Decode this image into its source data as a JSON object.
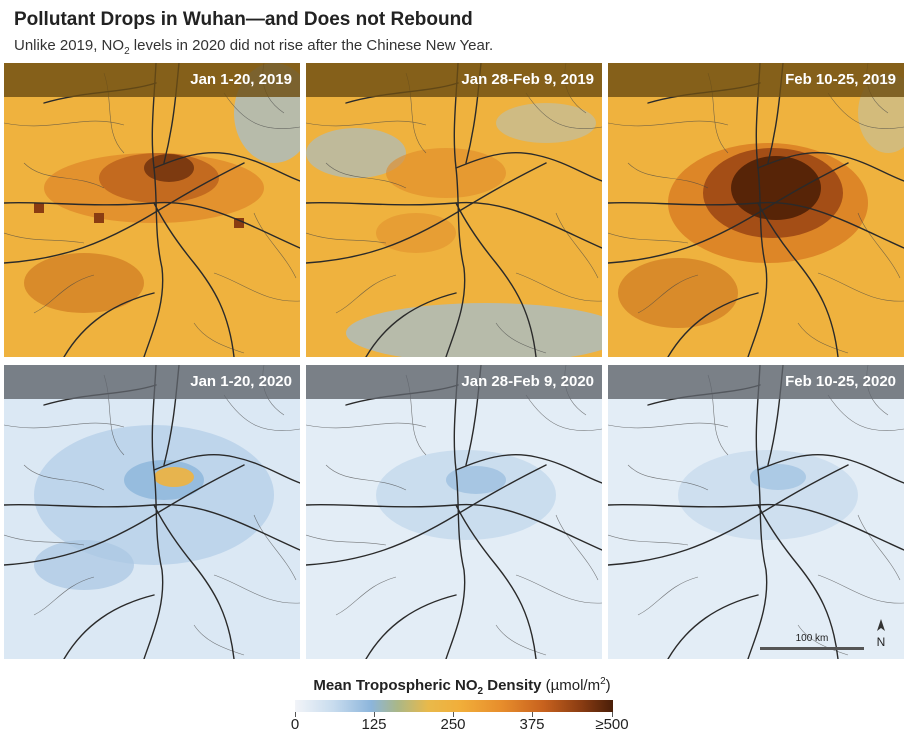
{
  "header": {
    "title": "Pollutant Drops in Wuhan—and Does not Rebound",
    "subtitle_pre": "Unlike 2019, NO",
    "subtitle_sub": "2",
    "subtitle_post": " levels in 2020 did not rise after the Chinese New Year."
  },
  "panels": [
    {
      "label": "Jan 1-20, 2019",
      "year": "2019",
      "intensity": "high"
    },
    {
      "label": "Jan 28-Feb 9, 2019",
      "year": "2019",
      "intensity": "medium"
    },
    {
      "label": "Feb 10-25, 2019",
      "year": "2019",
      "intensity": "very-high"
    },
    {
      "label": "Jan 1-20, 2020",
      "year": "2020",
      "intensity": "low"
    },
    {
      "label": "Jan 28-Feb 9, 2020",
      "year": "2020",
      "intensity": "very-low"
    },
    {
      "label": "Feb 10-25, 2020",
      "year": "2020",
      "intensity": "very-low"
    }
  ],
  "scale": {
    "label": "100 km"
  },
  "north": {
    "label": "N"
  },
  "legend": {
    "title_bold_pre": "Mean Tropospheric NO",
    "title_sub": "2",
    "title_bold_post": " Density",
    "units_pre": " (µmol/m",
    "units_sup": "2",
    "units_post": ")",
    "ticks": [
      "0",
      "125",
      "250",
      "375",
      "≥500"
    ]
  },
  "colors": {
    "low": "#dbe8f4",
    "mid_blue": "#8cb5db",
    "yellow": "#efb23e",
    "orange": "#e0902c",
    "dark_brown": "#5a2808"
  }
}
